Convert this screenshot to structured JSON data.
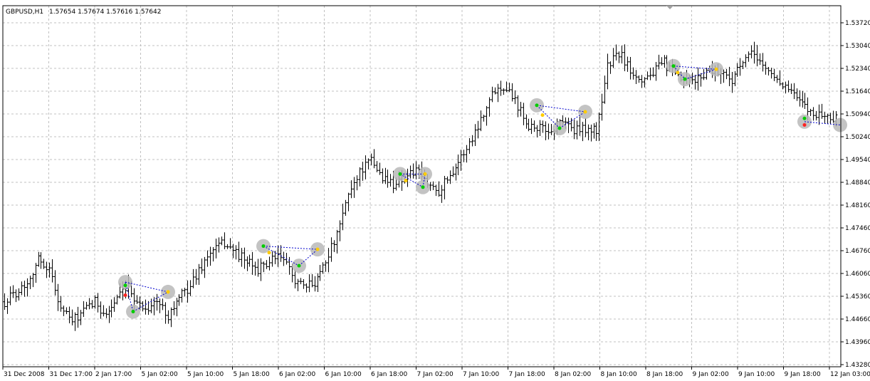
{
  "window": {
    "symbol": "GBPUSD,H1",
    "ohlc": "1.57654 1.57674 1.57616 1.57642"
  },
  "colors": {
    "background": "#ffffff",
    "grid": "#c0c0c0",
    "bar": "#000000",
    "frame": "#000000",
    "pattern_line": "#0000cc",
    "highlight": "#b8b8b8",
    "marker_up": "#00cc00",
    "marker_down": "#ff2222",
    "marker_mid": "#ffcc00"
  },
  "chart_data": {
    "type": "ohlc",
    "title": "",
    "xlabel": "",
    "ylabel": "",
    "ylim": [
      1.4296,
      1.5408
    ],
    "grid": true,
    "y_ticks": [
      "1.53720",
      "1.53040",
      "1.52340",
      "1.51640",
      "1.50940",
      "1.50240",
      "1.49540",
      "1.48840",
      "1.48160",
      "1.47460",
      "1.46760",
      "1.46060",
      "1.45360",
      "1.44660",
      "1.43960",
      "1.43280"
    ],
    "x_ticks": [
      "31 Dec 2008",
      "31 Dec 17:00",
      "2 Jan 17:00",
      "5 Jan 02:00",
      "5 Jan 10:00",
      "5 Jan 18:00",
      "6 Jan 02:00",
      "6 Jan 10:00",
      "6 Jan 18:00",
      "7 Jan 02:00",
      "7 Jan 10:00",
      "7 Jan 18:00",
      "8 Jan 02:00",
      "8 Jan 10:00",
      "8 Jan 18:00",
      "9 Jan 02:00",
      "9 Jan 10:00",
      "9 Jan 18:00",
      "12 Jan 03:00"
    ],
    "anchors": [
      [
        0,
        1.452
      ],
      [
        8,
        1.458
      ],
      [
        12,
        1.465
      ],
      [
        16,
        1.462
      ],
      [
        20,
        1.45
      ],
      [
        24,
        1.446
      ],
      [
        28,
        1.449
      ],
      [
        32,
        1.452
      ],
      [
        36,
        1.448
      ],
      [
        40,
        1.453
      ],
      [
        44,
        1.456
      ],
      [
        48,
        1.451
      ],
      [
        50,
        1.45
      ],
      [
        54,
        1.452
      ],
      [
        58,
        1.448
      ],
      [
        62,
        1.453
      ],
      [
        66,
        1.457
      ],
      [
        70,
        1.463
      ],
      [
        74,
        1.468
      ],
      [
        78,
        1.47
      ],
      [
        82,
        1.467
      ],
      [
        86,
        1.464
      ],
      [
        90,
        1.462
      ],
      [
        94,
        1.464
      ],
      [
        98,
        1.466
      ],
      [
        102,
        1.46
      ],
      [
        106,
        1.456
      ],
      [
        110,
        1.458
      ],
      [
        114,
        1.465
      ],
      [
        118,
        1.472
      ],
      [
        122,
        1.485
      ],
      [
        126,
        1.492
      ],
      [
        130,
        1.495
      ],
      [
        134,
        1.49
      ],
      [
        138,
        1.488
      ],
      [
        142,
        1.49
      ],
      [
        146,
        1.492
      ],
      [
        150,
        1.488
      ],
      [
        154,
        1.486
      ],
      [
        158,
        1.491
      ],
      [
        162,
        1.496
      ],
      [
        166,
        1.502
      ],
      [
        170,
        1.51
      ],
      [
        174,
        1.517
      ],
      [
        178,
        1.518
      ],
      [
        182,
        1.512
      ],
      [
        186,
        1.506
      ],
      [
        190,
        1.505
      ],
      [
        194,
        1.504
      ],
      [
        198,
        1.508
      ],
      [
        202,
        1.504
      ],
      [
        206,
        1.505
      ],
      [
        210,
        1.504
      ],
      [
        214,
        1.524
      ],
      [
        218,
        1.528
      ],
      [
        222,
        1.523
      ],
      [
        226,
        1.52
      ],
      [
        230,
        1.522
      ],
      [
        234,
        1.525
      ],
      [
        238,
        1.521
      ],
      [
        242,
        1.519
      ],
      [
        246,
        1.52
      ],
      [
        250,
        1.523
      ],
      [
        254,
        1.522
      ],
      [
        258,
        1.52
      ],
      [
        262,
        1.525
      ],
      [
        266,
        1.528
      ],
      [
        270,
        1.523
      ],
      [
        274,
        1.52
      ],
      [
        278,
        1.517
      ],
      [
        282,
        1.513
      ],
      [
        286,
        1.51
      ],
      [
        290,
        1.509
      ],
      [
        294,
        1.508
      ]
    ],
    "patterns": [
      {
        "points": [
          [
            176,
            1.458
          ],
          [
            187,
            1.449
          ],
          [
            236,
            1.455
          ]
        ],
        "markers": [
          [
            176,
            1.457,
            "up"
          ],
          [
            176,
            1.454,
            "down"
          ],
          [
            187,
            1.449,
            "up"
          ],
          [
            236,
            1.455,
            "mid"
          ]
        ]
      },
      {
        "points": [
          [
            370,
            1.469
          ],
          [
            420,
            1.463
          ],
          [
            446,
            1.468
          ]
        ],
        "markers": [
          [
            370,
            1.469,
            "up"
          ],
          [
            378,
            1.467,
            "mid"
          ],
          [
            420,
            1.463,
            "up"
          ],
          [
            446,
            1.468,
            "mid"
          ]
        ]
      },
      {
        "points": [
          [
            562,
            1.491
          ],
          [
            594,
            1.487
          ],
          [
            597,
            1.491
          ]
        ],
        "markers": [
          [
            562,
            1.491,
            "up"
          ],
          [
            570,
            1.489,
            "mid"
          ],
          [
            594,
            1.487,
            "up"
          ],
          [
            597,
            1.491,
            "mid"
          ]
        ]
      },
      {
        "points": [
          [
            754,
            1.512
          ],
          [
            786,
            1.505
          ],
          [
            822,
            1.51
          ]
        ],
        "markers": [
          [
            754,
            1.512,
            "up"
          ],
          [
            762,
            1.509,
            "mid"
          ],
          [
            786,
            1.505,
            "up"
          ],
          [
            822,
            1.51,
            "mid"
          ]
        ]
      },
      {
        "points": [
          [
            946,
            1.524
          ],
          [
            962,
            1.52
          ],
          [
            1006,
            1.523
          ]
        ],
        "markers": [
          [
            946,
            1.524,
            "up"
          ],
          [
            952,
            1.522,
            "mid"
          ],
          [
            962,
            1.52,
            "up"
          ],
          [
            1006,
            1.523,
            "mid"
          ]
        ]
      },
      {
        "points": [
          [
            1130,
            1.507
          ],
          [
            1180,
            1.506
          ]
        ],
        "markers": [
          [
            1130,
            1.508,
            "up"
          ],
          [
            1130,
            1.506,
            "down"
          ]
        ]
      }
    ]
  }
}
